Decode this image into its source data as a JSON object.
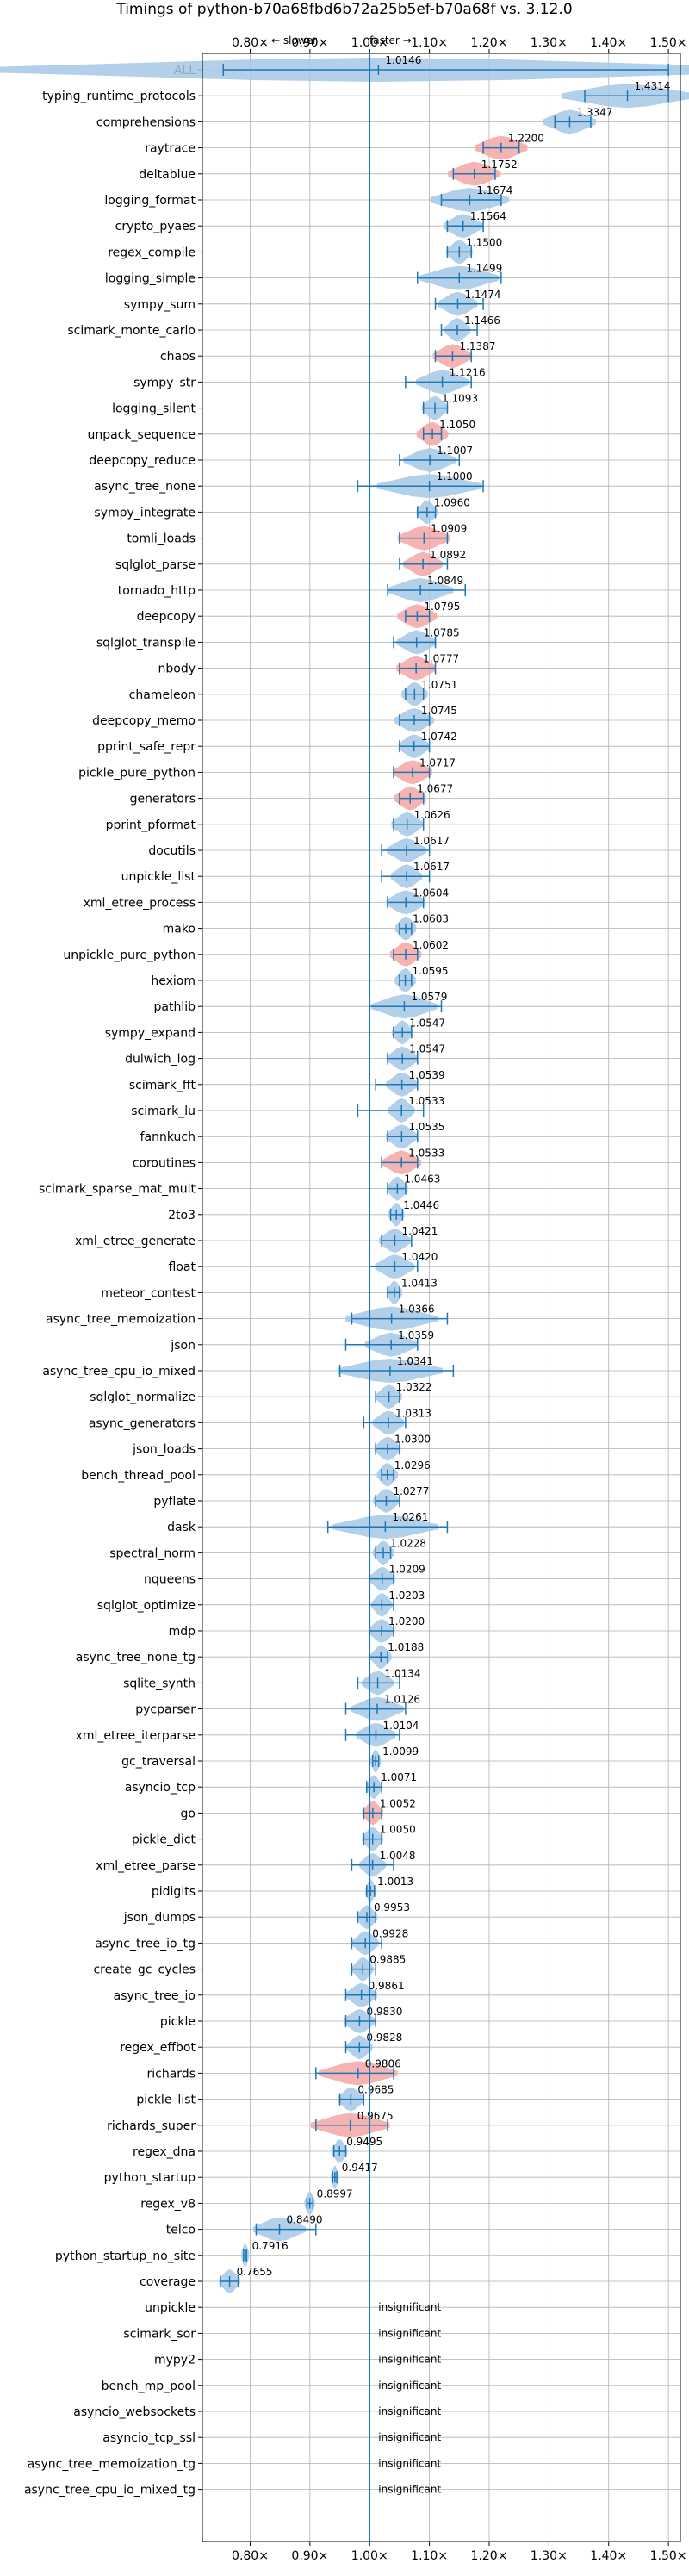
{
  "chart_data": {
    "type": "violin",
    "title": "Timings of python-b70a68fbd6b72a25b5ef-b70a68f vs. 3.12.0",
    "annotation": {
      "slower": "← slower",
      "faster": "faster →"
    },
    "xlim": [
      0.72,
      1.52
    ],
    "xticks": [
      0.8,
      0.9,
      1.0,
      1.1,
      1.2,
      1.3,
      1.4,
      1.5
    ],
    "xtick_labels": [
      "0.80×",
      "0.90×",
      "1.00×",
      "1.10×",
      "1.20×",
      "1.30×",
      "1.40×",
      "1.50×"
    ],
    "reference_line": 1.0,
    "grid": true,
    "colors": {
      "normal": "#a6c8e8",
      "highlight": "#f4a6a6",
      "line": "#1f77b4"
    },
    "insignificant_label": "insignificant",
    "rows": [
      {
        "name": "ALL",
        "value": 1.0146,
        "label": "1.0146",
        "lo": 0.755,
        "hi": 1.5,
        "spread": 0.3,
        "hl": false
      },
      {
        "name": "typing_runtime_protocols",
        "value": 1.4314,
        "label": "1.4314",
        "lo": 1.36,
        "hi": 1.5,
        "spread": 0.05,
        "hl": false
      },
      {
        "name": "comprehensions",
        "value": 1.3347,
        "label": "1.3347",
        "lo": 1.31,
        "hi": 1.37,
        "spread": 0.02,
        "hl": false
      },
      {
        "name": "raytrace",
        "value": 1.22,
        "label": "1.2200",
        "lo": 1.19,
        "hi": 1.25,
        "spread": 0.02,
        "hl": true
      },
      {
        "name": "deltablue",
        "value": 1.1752,
        "label": "1.1752",
        "lo": 1.14,
        "hi": 1.21,
        "spread": 0.02,
        "hl": true
      },
      {
        "name": "logging_format",
        "value": 1.1674,
        "label": "1.1674",
        "lo": 1.12,
        "hi": 1.22,
        "spread": 0.03,
        "hl": false
      },
      {
        "name": "crypto_pyaes",
        "value": 1.1564,
        "label": "1.1564",
        "lo": 1.13,
        "hi": 1.19,
        "spread": 0.015,
        "hl": false
      },
      {
        "name": "regex_compile",
        "value": 1.15,
        "label": "1.1500",
        "lo": 1.13,
        "hi": 1.17,
        "spread": 0.01,
        "hl": false
      },
      {
        "name": "logging_simple",
        "value": 1.1499,
        "label": "1.1499",
        "lo": 1.08,
        "hi": 1.22,
        "spread": 0.03,
        "hl": false
      },
      {
        "name": "sympy_sum",
        "value": 1.1474,
        "label": "1.1474",
        "lo": 1.11,
        "hi": 1.19,
        "spread": 0.015,
        "hl": false
      },
      {
        "name": "scimark_monte_carlo",
        "value": 1.1466,
        "label": "1.1466",
        "lo": 1.12,
        "hi": 1.18,
        "spread": 0.01,
        "hl": false
      },
      {
        "name": "chaos",
        "value": 1.1387,
        "label": "1.1387",
        "lo": 1.11,
        "hi": 1.17,
        "spread": 0.015,
        "hl": true
      },
      {
        "name": "sympy_str",
        "value": 1.1216,
        "label": "1.1216",
        "lo": 1.06,
        "hi": 1.17,
        "spread": 0.02,
        "hl": false
      },
      {
        "name": "logging_silent",
        "value": 1.1093,
        "label": "1.1093",
        "lo": 1.09,
        "hi": 1.13,
        "spread": 0.01,
        "hl": false
      },
      {
        "name": "unpack_sequence",
        "value": 1.105,
        "label": "1.1050",
        "lo": 1.09,
        "hi": 1.12,
        "spread": 0.012,
        "hl": true
      },
      {
        "name": "deepcopy_reduce",
        "value": 1.1007,
        "label": "1.1007",
        "lo": 1.05,
        "hi": 1.15,
        "spread": 0.02,
        "hl": false
      },
      {
        "name": "async_tree_none",
        "value": 1.1,
        "label": "1.1000",
        "lo": 0.98,
        "hi": 1.19,
        "spread": 0.04,
        "hl": false
      },
      {
        "name": "sympy_integrate",
        "value": 1.096,
        "label": "1.0960",
        "lo": 1.08,
        "hi": 1.11,
        "spread": 0.008,
        "hl": false
      },
      {
        "name": "tomli_loads",
        "value": 1.0909,
        "label": "1.0909",
        "lo": 1.05,
        "hi": 1.13,
        "spread": 0.02,
        "hl": true
      },
      {
        "name": "sqlglot_parse",
        "value": 1.0892,
        "label": "1.0892",
        "lo": 1.05,
        "hi": 1.13,
        "spread": 0.015,
        "hl": true
      },
      {
        "name": "tornado_http",
        "value": 1.0849,
        "label": "1.0849",
        "lo": 1.03,
        "hi": 1.16,
        "spread": 0.025,
        "hl": false
      },
      {
        "name": "deepcopy",
        "value": 1.0795,
        "label": "1.0795",
        "lo": 1.06,
        "hi": 1.1,
        "spread": 0.015,
        "hl": true
      },
      {
        "name": "sqlglot_transpile",
        "value": 1.0785,
        "label": "1.0785",
        "lo": 1.04,
        "hi": 1.11,
        "spread": 0.015,
        "hl": false
      },
      {
        "name": "nbody",
        "value": 1.0777,
        "label": "1.0777",
        "lo": 1.05,
        "hi": 1.11,
        "spread": 0.015,
        "hl": true
      },
      {
        "name": "chameleon",
        "value": 1.0751,
        "label": "1.0751",
        "lo": 1.06,
        "hi": 1.09,
        "spread": 0.01,
        "hl": false
      },
      {
        "name": "deepcopy_memo",
        "value": 1.0745,
        "label": "1.0745",
        "lo": 1.05,
        "hi": 1.1,
        "spread": 0.015,
        "hl": false
      },
      {
        "name": "pprint_safe_repr",
        "value": 1.0742,
        "label": "1.0742",
        "lo": 1.05,
        "hi": 1.1,
        "spread": 0.012,
        "hl": false
      },
      {
        "name": "pickle_pure_python",
        "value": 1.0717,
        "label": "1.0717",
        "lo": 1.04,
        "hi": 1.1,
        "spread": 0.015,
        "hl": true
      },
      {
        "name": "generators",
        "value": 1.0677,
        "label": "1.0677",
        "lo": 1.05,
        "hi": 1.09,
        "spread": 0.012,
        "hl": true
      },
      {
        "name": "pprint_pformat",
        "value": 1.0626,
        "label": "1.0626",
        "lo": 1.04,
        "hi": 1.09,
        "spread": 0.012,
        "hl": false
      },
      {
        "name": "docutils",
        "value": 1.0617,
        "label": "1.0617",
        "lo": 1.02,
        "hi": 1.1,
        "spread": 0.015,
        "hl": false
      },
      {
        "name": "unpickle_list",
        "value": 1.0617,
        "label": "1.0617",
        "lo": 1.02,
        "hi": 1.1,
        "spread": 0.012,
        "hl": false
      },
      {
        "name": "xml_etree_process",
        "value": 1.0604,
        "label": "1.0604",
        "lo": 1.03,
        "hi": 1.09,
        "spread": 0.015,
        "hl": false
      },
      {
        "name": "mako",
        "value": 1.0603,
        "label": "1.0603",
        "lo": 1.05,
        "hi": 1.07,
        "spread": 0.008,
        "hl": false
      },
      {
        "name": "unpickle_pure_python",
        "value": 1.0602,
        "label": "1.0602",
        "lo": 1.04,
        "hi": 1.08,
        "spread": 0.012,
        "hl": true
      },
      {
        "name": "hexiom",
        "value": 1.0595,
        "label": "1.0595",
        "lo": 1.05,
        "hi": 1.07,
        "spread": 0.008,
        "hl": false
      },
      {
        "name": "pathlib",
        "value": 1.0579,
        "label": "1.0579",
        "lo": 1.0,
        "hi": 1.12,
        "spread": 0.025,
        "hl": false
      },
      {
        "name": "sympy_expand",
        "value": 1.0547,
        "label": "1.0547",
        "lo": 1.04,
        "hi": 1.07,
        "spread": 0.008,
        "hl": false
      },
      {
        "name": "dulwich_log",
        "value": 1.0547,
        "label": "1.0547",
        "lo": 1.03,
        "hi": 1.08,
        "spread": 0.012,
        "hl": false
      },
      {
        "name": "scimark_fft",
        "value": 1.0539,
        "label": "1.0539",
        "lo": 1.01,
        "hi": 1.08,
        "spread": 0.012,
        "hl": false
      },
      {
        "name": "scimark_lu",
        "value": 1.0533,
        "label": "1.0533",
        "lo": 0.98,
        "hi": 1.09,
        "spread": 0.01,
        "hl": false
      },
      {
        "name": "fannkuch",
        "value": 1.0535,
        "label": "1.0535",
        "lo": 1.03,
        "hi": 1.08,
        "spread": 0.012,
        "hl": false
      },
      {
        "name": "coroutines",
        "value": 1.0533,
        "label": "1.0533",
        "lo": 1.02,
        "hi": 1.08,
        "spread": 0.015,
        "hl": true
      },
      {
        "name": "scimark_sparse_mat_mult",
        "value": 1.0463,
        "label": "1.0463",
        "lo": 1.03,
        "hi": 1.06,
        "spread": 0.008,
        "hl": false
      },
      {
        "name": "2to3",
        "value": 1.0446,
        "label": "1.0446",
        "lo": 1.035,
        "hi": 1.055,
        "spread": 0.006,
        "hl": false
      },
      {
        "name": "xml_etree_generate",
        "value": 1.0421,
        "label": "1.0421",
        "lo": 1.02,
        "hi": 1.07,
        "spread": 0.012,
        "hl": false
      },
      {
        "name": "float",
        "value": 1.042,
        "label": "1.0420",
        "lo": 1.0,
        "hi": 1.08,
        "spread": 0.015,
        "hl": false
      },
      {
        "name": "meteor_contest",
        "value": 1.0413,
        "label": "1.0413",
        "lo": 1.03,
        "hi": 1.05,
        "spread": 0.006,
        "hl": false
      },
      {
        "name": "async_tree_memoization",
        "value": 1.0366,
        "label": "1.0366",
        "lo": 0.97,
        "hi": 1.13,
        "spread": 0.035,
        "hl": false
      },
      {
        "name": "json",
        "value": 1.0359,
        "label": "1.0359",
        "lo": 0.96,
        "hi": 1.08,
        "spread": 0.02,
        "hl": false
      },
      {
        "name": "async_tree_cpu_io_mixed",
        "value": 1.0341,
        "label": "1.0341",
        "lo": 0.95,
        "hi": 1.14,
        "spread": 0.04,
        "hl": false
      },
      {
        "name": "sqlglot_normalize",
        "value": 1.0322,
        "label": "1.0322",
        "lo": 1.01,
        "hi": 1.05,
        "spread": 0.01,
        "hl": false
      },
      {
        "name": "async_generators",
        "value": 1.0313,
        "label": "1.0313",
        "lo": 0.99,
        "hi": 1.06,
        "spread": 0.012,
        "hl": false
      },
      {
        "name": "json_loads",
        "value": 1.03,
        "label": "1.0300",
        "lo": 1.01,
        "hi": 1.05,
        "spread": 0.01,
        "hl": false
      },
      {
        "name": "bench_thread_pool",
        "value": 1.0296,
        "label": "1.0296",
        "lo": 1.02,
        "hi": 1.04,
        "spread": 0.008,
        "hl": false
      },
      {
        "name": "pyflate",
        "value": 1.0277,
        "label": "1.0277",
        "lo": 1.01,
        "hi": 1.05,
        "spread": 0.01,
        "hl": false
      },
      {
        "name": "dask",
        "value": 1.0261,
        "label": "1.0261",
        "lo": 0.93,
        "hi": 1.13,
        "spread": 0.04,
        "hl": false
      },
      {
        "name": "spectral_norm",
        "value": 1.0228,
        "label": "1.0228",
        "lo": 1.01,
        "hi": 1.035,
        "spread": 0.008,
        "hl": false
      },
      {
        "name": "nqueens",
        "value": 1.0209,
        "label": "1.0209",
        "lo": 1.0,
        "hi": 1.04,
        "spread": 0.01,
        "hl": false
      },
      {
        "name": "sqlglot_optimize",
        "value": 1.0203,
        "label": "1.0203",
        "lo": 1.0,
        "hi": 1.04,
        "spread": 0.008,
        "hl": false
      },
      {
        "name": "mdp",
        "value": 1.02,
        "label": "1.0200",
        "lo": 1.0,
        "hi": 1.04,
        "spread": 0.01,
        "hl": false
      },
      {
        "name": "async_tree_none_tg",
        "value": 1.0188,
        "label": "1.0188",
        "lo": 1.0,
        "hi": 1.03,
        "spread": 0.008,
        "hl": false
      },
      {
        "name": "sqlite_synth",
        "value": 1.0134,
        "label": "1.0134",
        "lo": 0.98,
        "hi": 1.05,
        "spread": 0.012,
        "hl": false
      },
      {
        "name": "pycparser",
        "value": 1.0126,
        "label": "1.0126",
        "lo": 0.96,
        "hi": 1.06,
        "spread": 0.02,
        "hl": false
      },
      {
        "name": "xml_etree_iterparse",
        "value": 1.0104,
        "label": "1.0104",
        "lo": 0.96,
        "hi": 1.05,
        "spread": 0.015,
        "hl": false
      },
      {
        "name": "gc_traversal",
        "value": 1.0099,
        "label": "1.0099",
        "lo": 1.005,
        "hi": 1.015,
        "spread": 0.004,
        "hl": false
      },
      {
        "name": "asyncio_tcp",
        "value": 1.0071,
        "label": "1.0071",
        "lo": 0.995,
        "hi": 1.02,
        "spread": 0.006,
        "hl": false
      },
      {
        "name": "go",
        "value": 1.0052,
        "label": "1.0052",
        "lo": 0.99,
        "hi": 1.02,
        "spread": 0.008,
        "hl": true
      },
      {
        "name": "pickle_dict",
        "value": 1.005,
        "label": "1.0050",
        "lo": 0.99,
        "hi": 1.02,
        "spread": 0.008,
        "hl": false
      },
      {
        "name": "xml_etree_parse",
        "value": 1.0048,
        "label": "1.0048",
        "lo": 0.97,
        "hi": 1.04,
        "spread": 0.01,
        "hl": false
      },
      {
        "name": "pidigits",
        "value": 1.0013,
        "label": "1.0013",
        "lo": 0.995,
        "hi": 1.008,
        "spread": 0.004,
        "hl": false
      },
      {
        "name": "json_dumps",
        "value": 0.9953,
        "label": "0.9953",
        "lo": 0.98,
        "hi": 1.01,
        "spread": 0.008,
        "hl": false
      },
      {
        "name": "async_tree_io_tg",
        "value": 0.9928,
        "label": "0.9928",
        "lo": 0.97,
        "hi": 1.02,
        "spread": 0.01,
        "hl": false
      },
      {
        "name": "create_gc_cycles",
        "value": 0.9885,
        "label": "0.9885",
        "lo": 0.97,
        "hi": 1.01,
        "spread": 0.008,
        "hl": false
      },
      {
        "name": "async_tree_io",
        "value": 0.9861,
        "label": "0.9861",
        "lo": 0.96,
        "hi": 1.01,
        "spread": 0.012,
        "hl": false
      },
      {
        "name": "pickle",
        "value": 0.983,
        "label": "0.9830",
        "lo": 0.96,
        "hi": 1.01,
        "spread": 0.012,
        "hl": false
      },
      {
        "name": "regex_effbot",
        "value": 0.9828,
        "label": "0.9828",
        "lo": 0.96,
        "hi": 1.0,
        "spread": 0.01,
        "hl": false
      },
      {
        "name": "richards",
        "value": 0.9806,
        "label": "0.9806",
        "lo": 0.91,
        "hi": 1.04,
        "spread": 0.03,
        "hl": true
      },
      {
        "name": "pickle_list",
        "value": 0.9685,
        "label": "0.9685",
        "lo": 0.95,
        "hi": 0.99,
        "spread": 0.01,
        "hl": false
      },
      {
        "name": "richards_super",
        "value": 0.9675,
        "label": "0.9675",
        "lo": 0.91,
        "hi": 1.03,
        "spread": 0.03,
        "hl": true
      },
      {
        "name": "regex_dna",
        "value": 0.9495,
        "label": "0.9495",
        "lo": 0.94,
        "hi": 0.96,
        "spread": 0.006,
        "hl": false
      },
      {
        "name": "python_startup",
        "value": 0.9417,
        "label": "0.9417",
        "lo": 0.938,
        "hi": 0.945,
        "spread": 0.003,
        "hl": false
      },
      {
        "name": "regex_v8",
        "value": 0.8997,
        "label": "0.8997",
        "lo": 0.895,
        "hi": 0.905,
        "spread": 0.004,
        "hl": false
      },
      {
        "name": "telco",
        "value": 0.849,
        "label": "0.8490",
        "lo": 0.81,
        "hi": 0.91,
        "spread": 0.02,
        "hl": false
      },
      {
        "name": "python_startup_no_site",
        "value": 0.7916,
        "label": "0.7916",
        "lo": 0.789,
        "hi": 0.794,
        "spread": 0.003,
        "hl": false
      },
      {
        "name": "coverage",
        "value": 0.7655,
        "label": "0.7655",
        "lo": 0.75,
        "hi": 0.78,
        "spread": 0.008,
        "hl": false
      },
      {
        "name": "unpickle",
        "value": null,
        "label": "insignificant",
        "hl": false
      },
      {
        "name": "scimark_sor",
        "value": null,
        "label": "insignificant",
        "hl": false
      },
      {
        "name": "mypy2",
        "value": null,
        "label": "insignificant",
        "hl": false
      },
      {
        "name": "bench_mp_pool",
        "value": null,
        "label": "insignificant",
        "hl": false
      },
      {
        "name": "asyncio_websockets",
        "value": null,
        "label": "insignificant",
        "hl": false
      },
      {
        "name": "asyncio_tcp_ssl",
        "value": null,
        "label": "insignificant",
        "hl": false
      },
      {
        "name": "async_tree_memoization_tg",
        "value": null,
        "label": "insignificant",
        "hl": false
      },
      {
        "name": "async_tree_cpu_io_mixed_tg",
        "value": null,
        "label": "insignificant",
        "hl": false
      }
    ]
  }
}
